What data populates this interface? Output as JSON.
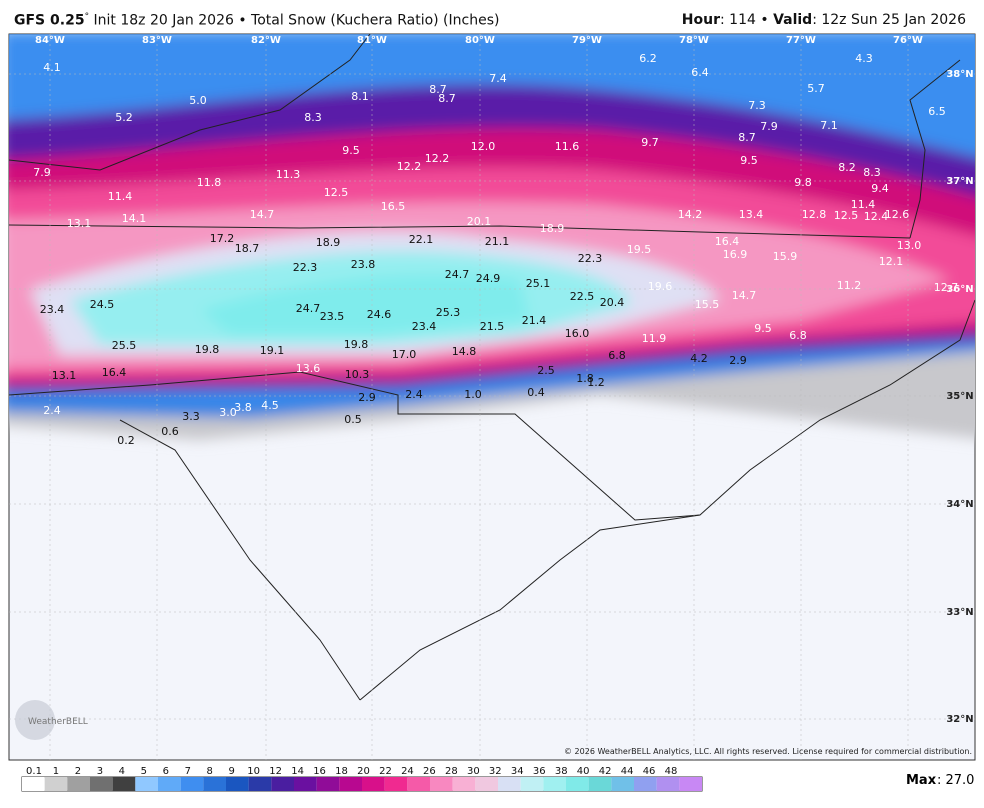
{
  "header": {
    "model": "GFS 0.25",
    "degree": "°",
    "title": " Init 18z 20 Jan 2026 • Total Snow (Kuchera Ratio) (Inches)",
    "hour_label": "Hour",
    "hour": ": 114 • ",
    "valid_label": "Valid",
    "valid": ": 12z Sun 25 Jan 2026"
  },
  "map": {
    "lon_labels": [
      "84°W",
      "83°W",
      "82°W",
      "81°W",
      "80°W",
      "79°W",
      "78°W",
      "77°W",
      "76°W"
    ],
    "lat_labels": [
      "38°N",
      "37°N",
      "36°N",
      "35°N",
      "34°N",
      "33°N",
      "32°N"
    ],
    "values": [
      "4.1",
      "5.0",
      "5.2",
      "8.1",
      "8.7",
      "8.7",
      "7.4",
      "6.2",
      "6.4",
      "5.7",
      "4.3",
      "6.5",
      "7.3",
      "8.3",
      "8.7",
      "7.9",
      "7.1",
      "9.5",
      "12.2",
      "12.2",
      "12.0",
      "11.6",
      "9.7",
      "9.5",
      "8.2",
      "8.3",
      "7.9",
      "11.4",
      "11.8",
      "11.3",
      "12.5",
      "16.5",
      "9.8",
      "9.4",
      "11.4",
      "13.1",
      "14.1",
      "14.7",
      "20.1",
      "18.9",
      "14.2",
      "13.4",
      "12.8",
      "12.5",
      "12.4",
      "12.6",
      "17.2",
      "18.7",
      "18.9",
      "22.1",
      "21.1",
      "19.5",
      "16.4",
      "16.9",
      "15.9",
      "13.0",
      "22.3",
      "23.8",
      "22.3",
      "12.1",
      "24.7",
      "24.9",
      "25.1",
      "19.6",
      "11.2",
      "12.7",
      "23.4",
      "24.5",
      "24.7",
      "23.5",
      "24.6",
      "25.3",
      "22.5",
      "20.4",
      "15.5",
      "14.7",
      "23.4",
      "21.5",
      "21.4",
      "16.0",
      "11.9",
      "9.5",
      "6.8",
      "25.5",
      "19.8",
      "19.1",
      "19.8",
      "17.0",
      "14.8",
      "6.8",
      "4.2",
      "2.9",
      "13.1",
      "16.4",
      "13.6",
      "10.3",
      "2.5",
      "1.8",
      "1.2",
      "2.4",
      "2.9",
      "1.0",
      "0.4",
      "2.4",
      "4.5",
      "3.8",
      "3.0",
      "3.3",
      "0.5",
      "0.6",
      "0.2"
    ],
    "copyright": "© 2026 WeatherBELL Analytics, LLC. All rights reserved. License required for commercial distribution.",
    "logo": "WeatherBELL"
  },
  "legend": {
    "labels": [
      "0.1",
      "1",
      "2",
      "3",
      "4",
      "5",
      "6",
      "7",
      "8",
      "9",
      "10",
      "12",
      "14",
      "16",
      "18",
      "20",
      "22",
      "24",
      "26",
      "28",
      "30",
      "32",
      "34",
      "36",
      "38",
      "40",
      "42",
      "44",
      "46",
      "48"
    ],
    "max_label": "Max",
    "max": ": 27.0"
  }
}
